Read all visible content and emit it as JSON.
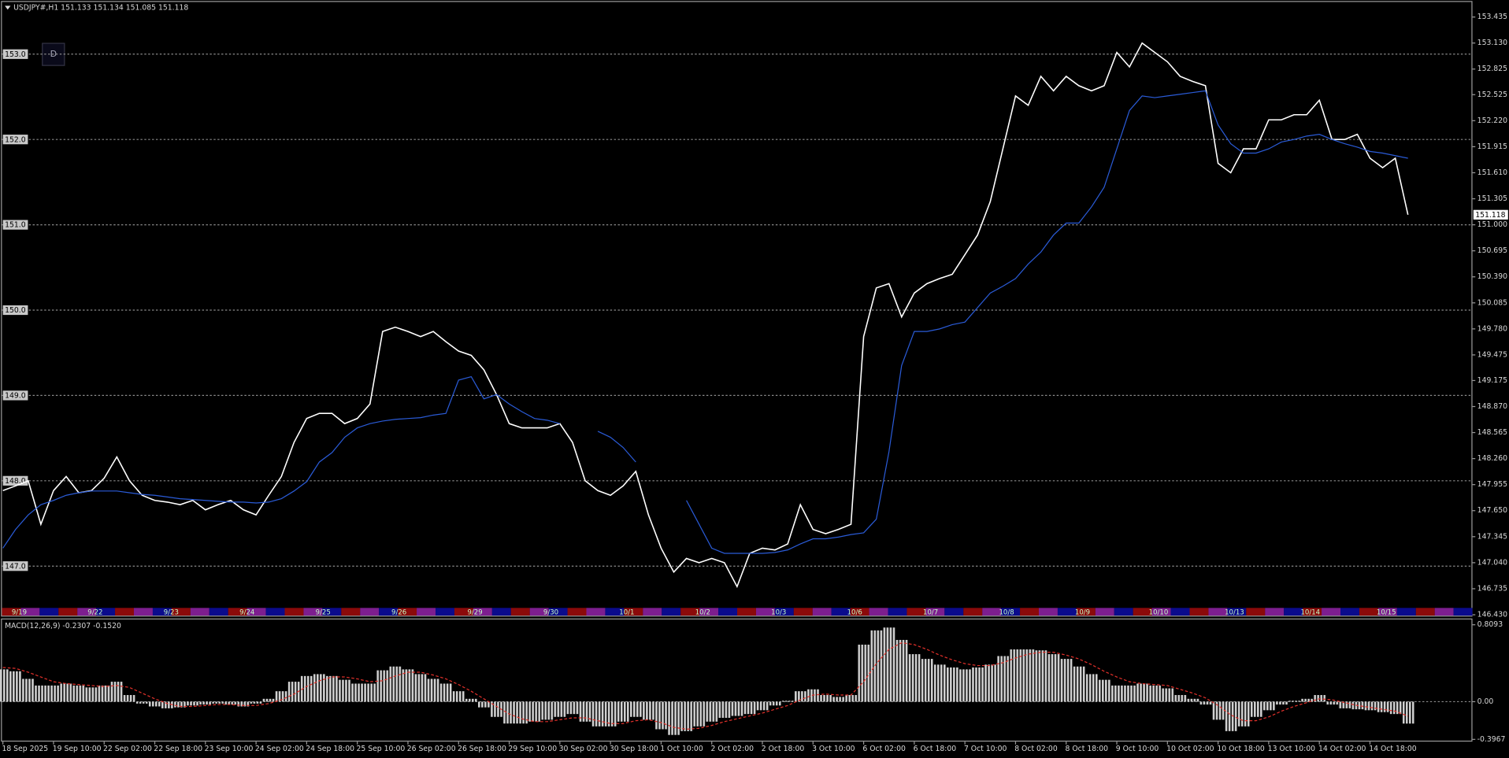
{
  "chart_data": [
    {
      "type": "line",
      "title": "USDJPY#,H1  151.133 151.134 151.085 151.118",
      "series": [
        {
          "color": "#ffffff",
          "values": [
            147.885,
            147.94,
            148.0,
            147.49,
            147.885,
            148.05,
            147.86,
            147.885,
            148.03,
            148.28,
            148.0,
            147.83,
            147.77,
            147.75,
            147.72,
            147.77,
            147.66,
            147.72,
            147.77,
            147.66,
            147.6,
            147.83,
            148.05,
            148.45,
            148.73,
            148.79,
            148.79,
            148.67,
            148.73,
            148.9,
            149.75,
            149.8,
            149.75,
            149.69,
            149.75,
            149.63,
            149.52,
            149.47,
            149.3,
            149.01,
            148.67,
            148.62,
            148.62,
            148.62,
            148.67,
            148.45,
            148.0,
            147.885,
            147.83,
            147.94,
            148.11,
            147.6,
            147.21,
            146.93,
            147.09,
            147.04,
            147.09,
            147.04,
            146.76,
            147.15,
            147.21,
            147.19,
            147.26,
            147.72,
            147.43,
            147.38,
            147.43,
            147.49,
            149.69,
            150.26,
            150.31,
            149.92,
            150.2,
            150.31,
            150.37,
            150.42,
            150.65,
            150.88,
            151.27,
            151.89,
            152.51,
            152.4,
            152.74,
            152.57,
            152.74,
            152.63,
            152.57,
            152.63,
            153.02,
            152.85,
            153.13,
            153.02,
            152.91,
            152.74,
            152.68,
            152.63,
            151.72,
            151.61,
            151.89,
            151.89,
            152.23,
            152.23,
            152.29,
            152.29,
            152.46,
            152.0,
            152.0,
            152.06,
            151.78,
            151.67,
            151.78,
            151.118
          ]
        },
        {
          "color": "#2a5bd7",
          "values": [
            147.21,
            147.43,
            147.6,
            147.72,
            147.77,
            147.83,
            147.86,
            147.88,
            147.88,
            147.88,
            147.86,
            147.84,
            147.83,
            147.81,
            147.79,
            147.78,
            147.77,
            147.76,
            147.75,
            147.75,
            147.74,
            147.75,
            147.79,
            147.88,
            147.99,
            148.22,
            148.33,
            148.51,
            148.62,
            148.67,
            148.7,
            148.72,
            148.73,
            148.74,
            148.77,
            148.79,
            149.18,
            149.22,
            148.96,
            149.01,
            148.9,
            148.81,
            148.73,
            148.71,
            148.67,
            null,
            null,
            148.58,
            148.51,
            148.39,
            148.22,
            null,
            null,
            null,
            147.77,
            147.49,
            147.21,
            147.15,
            147.15,
            147.15,
            147.15,
            147.16,
            147.19,
            147.26,
            147.32,
            147.32,
            147.34,
            147.37,
            147.39,
            147.55,
            148.34,
            149.35,
            149.75,
            149.75,
            149.78,
            149.83,
            149.86,
            150.03,
            150.2,
            150.28,
            150.37,
            150.54,
            150.68,
            150.88,
            151.02,
            151.02,
            151.21,
            151.44,
            151.89,
            152.34,
            152.51,
            152.49,
            152.51,
            152.53,
            152.55,
            152.57,
            152.17,
            151.95,
            151.84,
            151.84,
            151.89,
            151.97,
            152.0,
            152.04,
            152.06,
            152.0,
            151.95,
            151.91,
            151.86,
            151.84,
            151.81,
            151.78
          ]
        }
      ],
      "ylim": [
        146.42,
        153.6
      ],
      "yticks": [
        153.435,
        {
          "value": 153.13,
          "label": "153.130"
        },
        152.825,
        152.525,
        {
          "value": 152.22,
          "label": "152.220"
        },
        151.915,
        {
          "value": 151.61,
          "label": "151.610"
        },
        151.305,
        {
          "value": 151,
          "label": "151.000"
        },
        150.695,
        {
          "value": 150.39,
          "label": "150.390"
        },
        150.085,
        {
          "value": 149.78,
          "label": "149.780"
        },
        149.475,
        149.175,
        {
          "value": 148.87,
          "label": "148.870"
        },
        148.565,
        {
          "value": 148.26,
          "label": "148.260"
        },
        147.955,
        {
          "value": 147.65,
          "label": "147.650"
        },
        147.345,
        {
          "value": 147.04,
          "label": "147.040"
        },
        146.735,
        {
          "value": 146.43,
          "label": "146.430"
        }
      ],
      "hlines": [
        {
          "value": 153,
          "label": "153.0"
        },
        {
          "value": 152,
          "label": "152.0"
        },
        {
          "value": 151,
          "label": "151.0"
        },
        {
          "value": 150,
          "label": "150.0"
        },
        {
          "value": 149,
          "label": "149.0"
        },
        {
          "value": 148,
          "label": "148.0"
        },
        {
          "value": 147,
          "label": "147.0"
        }
      ],
      "grid": true,
      "day_labels": [
        "9/19",
        "9/22",
        "9/23",
        "9/24",
        "9/25",
        "9/26",
        "9/29",
        "9/30",
        "10/1",
        "10/2",
        "10/3",
        "10/6",
        "10/7",
        "10/8",
        "10/9",
        "10/10",
        "10/13",
        "10/14",
        "10/15"
      ]
    },
    {
      "type": "bar",
      "title": "MACD(12,26,9) -0.2307 -0.1520",
      "categories": [
        "18 Sep 2025",
        null,
        null,
        null,
        "19 Sep 10:00",
        null,
        null,
        null,
        "22 Sep 02:00",
        null,
        null,
        null,
        "22 Sep 18:00",
        null,
        null,
        null,
        "23 Sep 10:00",
        null,
        null,
        null,
        "24 Sep 02:00",
        null,
        null,
        null,
        "24 Sep 18:00",
        null,
        null,
        null,
        "25 Sep 10:00",
        null,
        null,
        null,
        "26 Sep 02:00",
        null,
        null,
        null,
        "26 Sep 18:00",
        null,
        null,
        null,
        "29 Sep 10:00",
        null,
        null,
        null,
        "30 Sep 02:00",
        null,
        null,
        null,
        "30 Sep 18:00",
        null,
        null,
        null,
        "1 Oct 10:00",
        null,
        null,
        null,
        "2 Oct 02:00",
        null,
        null,
        null,
        "2 Oct 18:00",
        null,
        null,
        null,
        "3 Oct 10:00",
        null,
        null,
        null,
        "6 Oct 02:00",
        null,
        null,
        null,
        "6 Oct 18:00",
        null,
        null,
        null,
        "7 Oct 10:00",
        null,
        null,
        null,
        "8 Oct 02:00",
        null,
        null,
        null,
        "8 Oct 18:00",
        null,
        null,
        null,
        "9 Oct 10:00",
        null,
        null,
        null,
        "10 Oct 02:00",
        null,
        null,
        null,
        "10 Oct 18:00",
        null,
        null,
        null,
        "13 Oct 10:00",
        null,
        null,
        null,
        "14 Oct 02:00",
        null,
        null,
        null,
        "14 Oct 18:00",
        null,
        null,
        null
      ],
      "series": [
        {
          "color": "#c8c8c8",
          "values": [
            0.34,
            0.32,
            0.24,
            0.17,
            0.17,
            0.19,
            0.17,
            0.15,
            0.17,
            0.21,
            0.07,
            -0.02,
            -0.05,
            -0.07,
            -0.06,
            -0.04,
            -0.03,
            -0.02,
            -0.03,
            -0.05,
            -0.02,
            0.03,
            0.11,
            0.21,
            0.27,
            0.29,
            0.27,
            0.23,
            0.19,
            0.19,
            0.33,
            0.37,
            0.34,
            0.29,
            0.24,
            0.19,
            0.11,
            0.03,
            -0.06,
            -0.16,
            -0.23,
            -0.23,
            -0.21,
            -0.19,
            -0.16,
            -0.13,
            -0.21,
            -0.26,
            -0.26,
            -0.21,
            -0.16,
            -0.19,
            -0.29,
            -0.35,
            -0.31,
            -0.26,
            -0.21,
            -0.17,
            -0.15,
            -0.13,
            -0.09,
            -0.04,
            0.01,
            0.11,
            0.13,
            0.07,
            0.05,
            0.07,
            0.6,
            0.75,
            0.78,
            0.65,
            0.5,
            0.45,
            0.39,
            0.36,
            0.34,
            0.36,
            0.39,
            0.48,
            0.55,
            0.55,
            0.54,
            0.5,
            0.45,
            0.37,
            0.29,
            0.23,
            0.17,
            0.17,
            0.19,
            0.17,
            0.14,
            0.07,
            0.03,
            -0.03,
            -0.19,
            -0.31,
            -0.26,
            -0.16,
            -0.09,
            -0.03,
            0.01,
            0.03,
            0.07,
            -0.03,
            -0.07,
            -0.08,
            -0.09,
            -0.11,
            -0.13,
            -0.2307
          ]
        },
        {
          "type": "line",
          "dash": true,
          "color": "#e0302a",
          "values": [
            0.36,
            0.35,
            0.31,
            0.26,
            0.21,
            0.19,
            0.18,
            0.17,
            0.16,
            0.17,
            0.15,
            0.09,
            0.03,
            -0.02,
            -0.05,
            -0.05,
            -0.04,
            -0.03,
            -0.03,
            -0.04,
            -0.04,
            -0.02,
            0.02,
            0.08,
            0.16,
            0.22,
            0.26,
            0.26,
            0.24,
            0.21,
            0.22,
            0.27,
            0.31,
            0.31,
            0.28,
            0.24,
            0.18,
            0.11,
            0.03,
            -0.05,
            -0.13,
            -0.18,
            -0.21,
            -0.21,
            -0.19,
            -0.17,
            -0.17,
            -0.2,
            -0.23,
            -0.23,
            -0.2,
            -0.19,
            -0.22,
            -0.27,
            -0.29,
            -0.28,
            -0.25,
            -0.21,
            -0.18,
            -0.15,
            -0.12,
            -0.08,
            -0.04,
            0.02,
            0.07,
            0.08,
            0.07,
            0.07,
            0.21,
            0.4,
            0.55,
            0.62,
            0.6,
            0.55,
            0.49,
            0.44,
            0.4,
            0.38,
            0.38,
            0.41,
            0.46,
            0.5,
            0.52,
            0.52,
            0.49,
            0.45,
            0.39,
            0.32,
            0.26,
            0.21,
            0.19,
            0.18,
            0.17,
            0.13,
            0.09,
            0.04,
            -0.04,
            -0.14,
            -0.2,
            -0.2,
            -0.16,
            -0.1,
            -0.05,
            -0.01,
            0.03,
            0.02,
            -0.01,
            -0.04,
            -0.06,
            -0.08,
            -0.1,
            -0.152
          ]
        }
      ],
      "ylim": [
        -0.41,
        0.855
      ],
      "yticks": [
        0.8093,
        {
          "value": 0,
          "label": "0.00"
        },
        -0.3967
      ]
    }
  ],
  "button": "D"
}
